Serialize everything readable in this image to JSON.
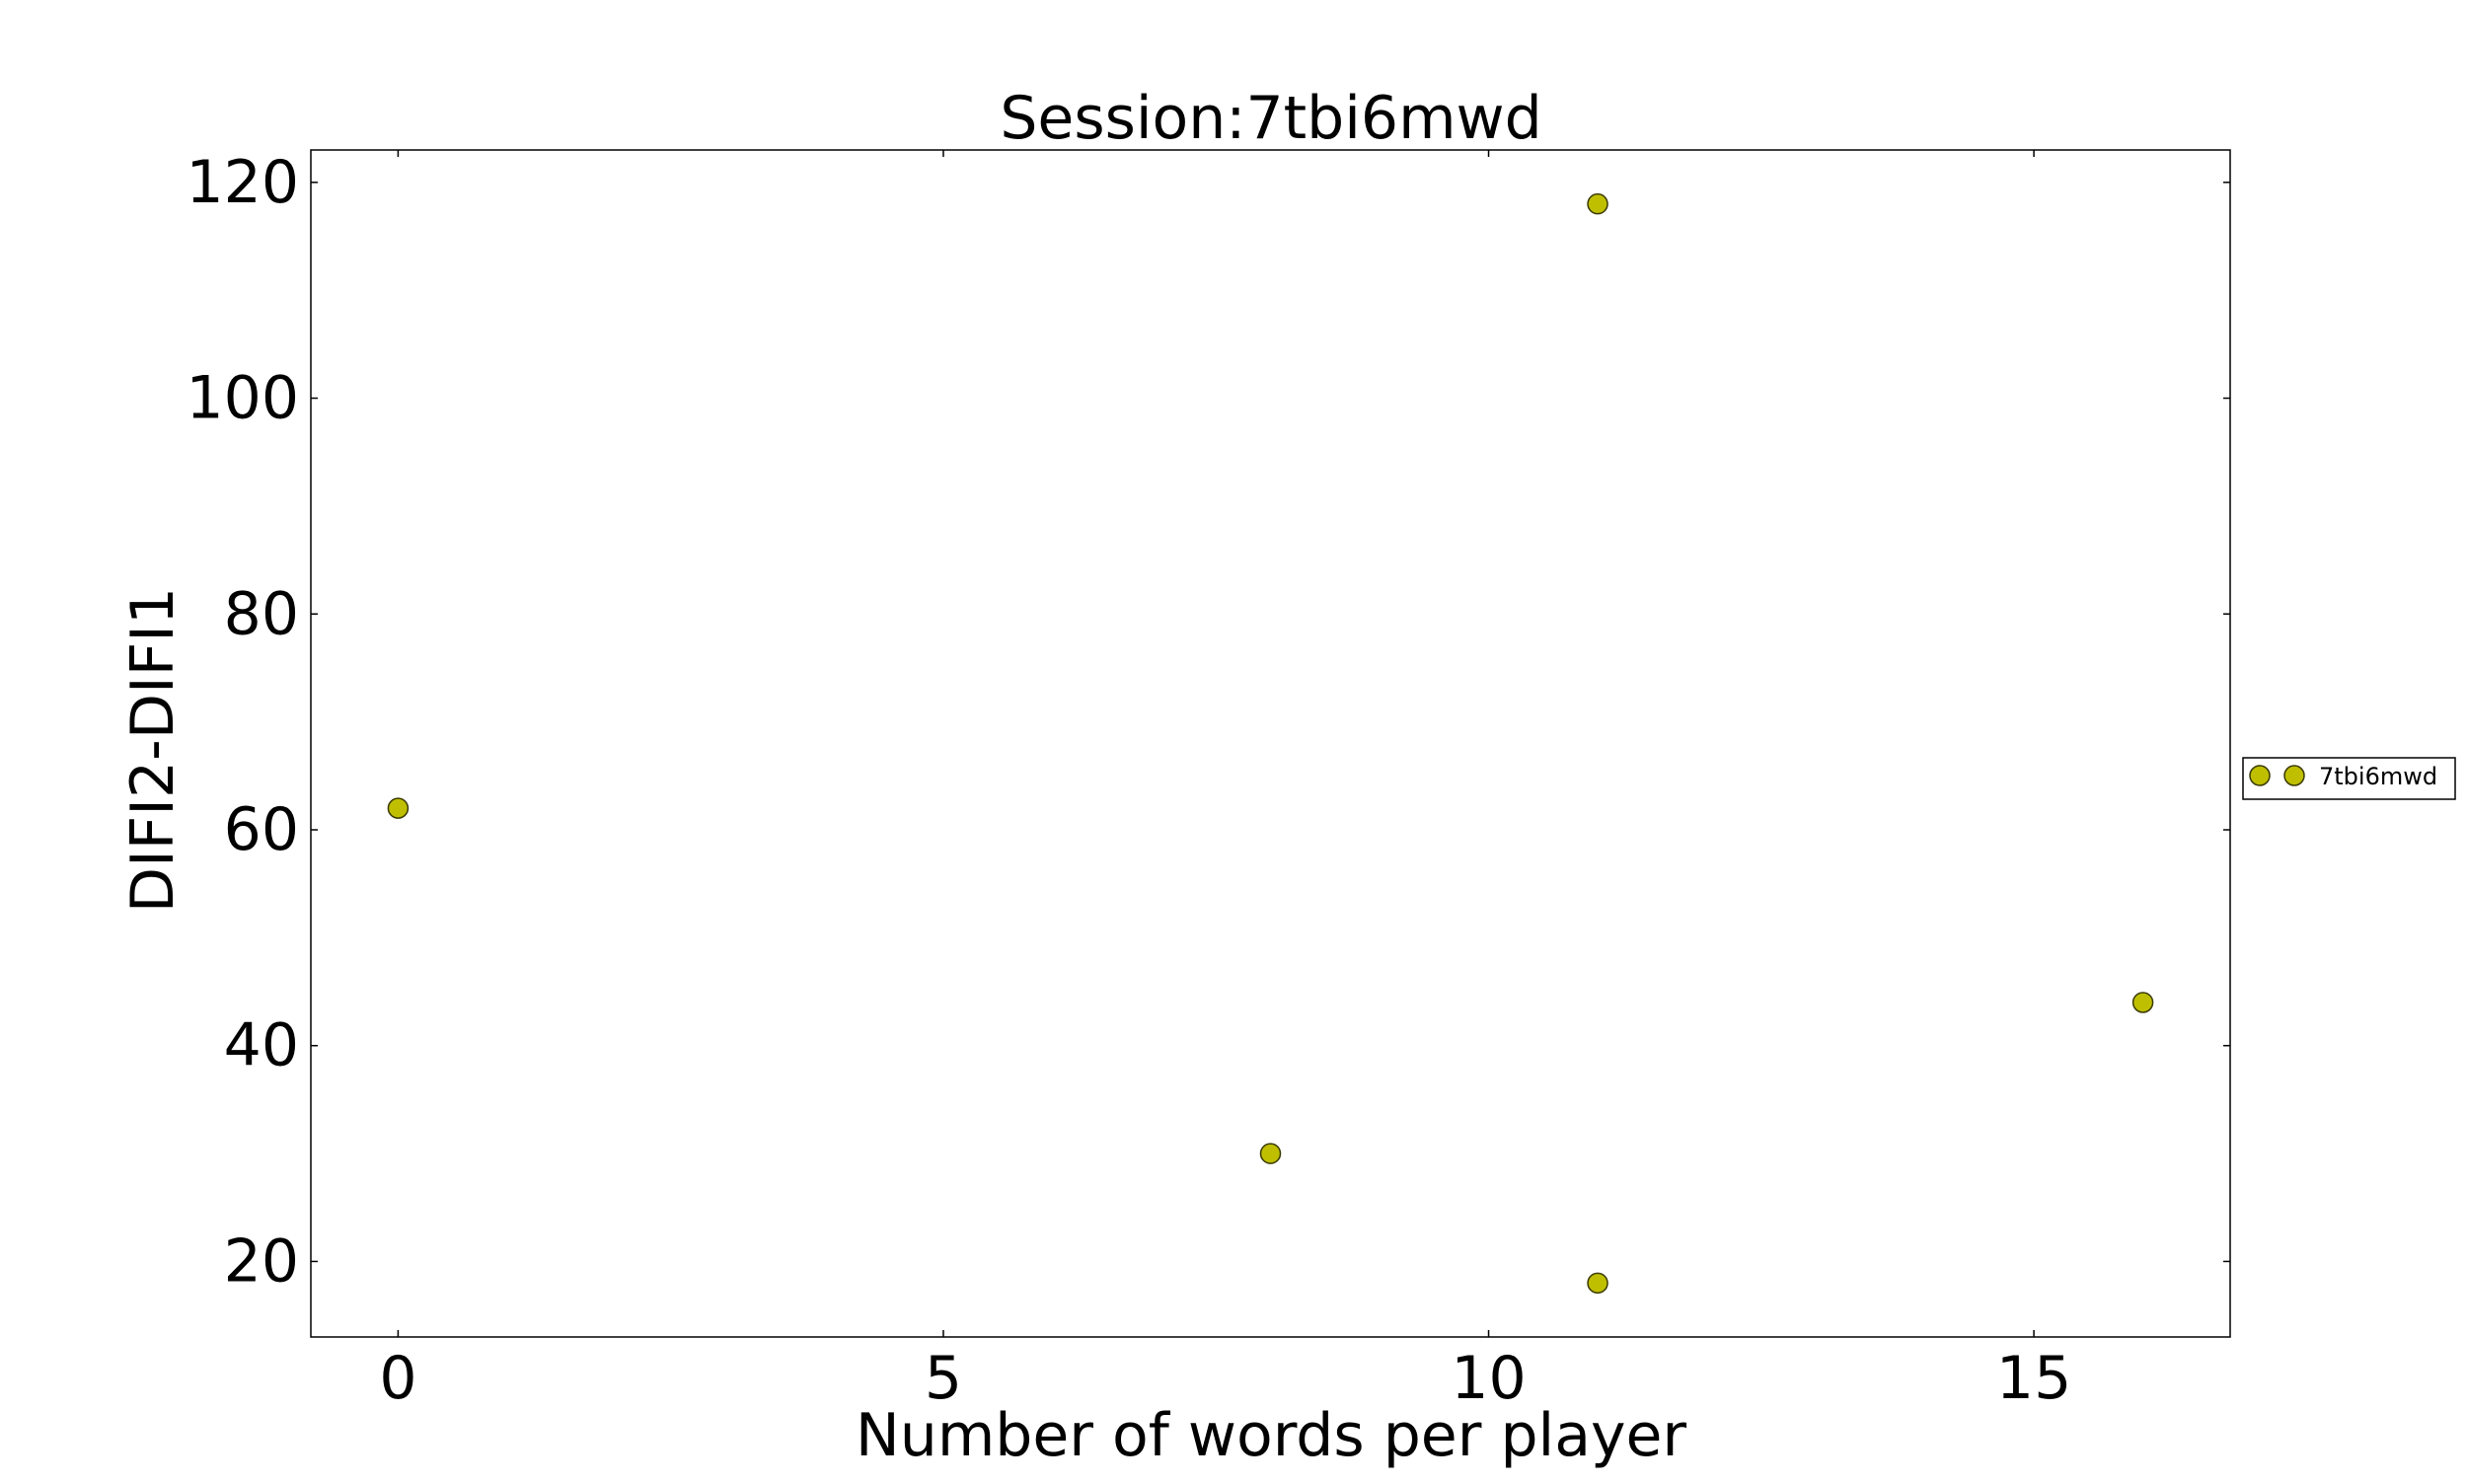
{
  "chart_data": {
    "type": "scatter",
    "title": "Session:7tbi6mwd",
    "xlabel": "Number of words per player",
    "ylabel": "DIFI2-DIFI1",
    "xlim": [
      -0.8,
      16.8
    ],
    "ylim": [
      13,
      123
    ],
    "xticks": [
      0,
      5,
      10,
      15
    ],
    "yticks": [
      20,
      40,
      60,
      80,
      100,
      120
    ],
    "grid": false,
    "legend_position": "outside-right",
    "series": [
      {
        "name": "7tbi6mwd",
        "color": "#bfbf00",
        "edge_color": "#3a3a00",
        "marker": "circle",
        "points": [
          {
            "x": 0,
            "y": 62
          },
          {
            "x": 8,
            "y": 30
          },
          {
            "x": 11,
            "y": 118
          },
          {
            "x": 11,
            "y": 18
          },
          {
            "x": 16,
            "y": 44
          }
        ]
      }
    ]
  }
}
